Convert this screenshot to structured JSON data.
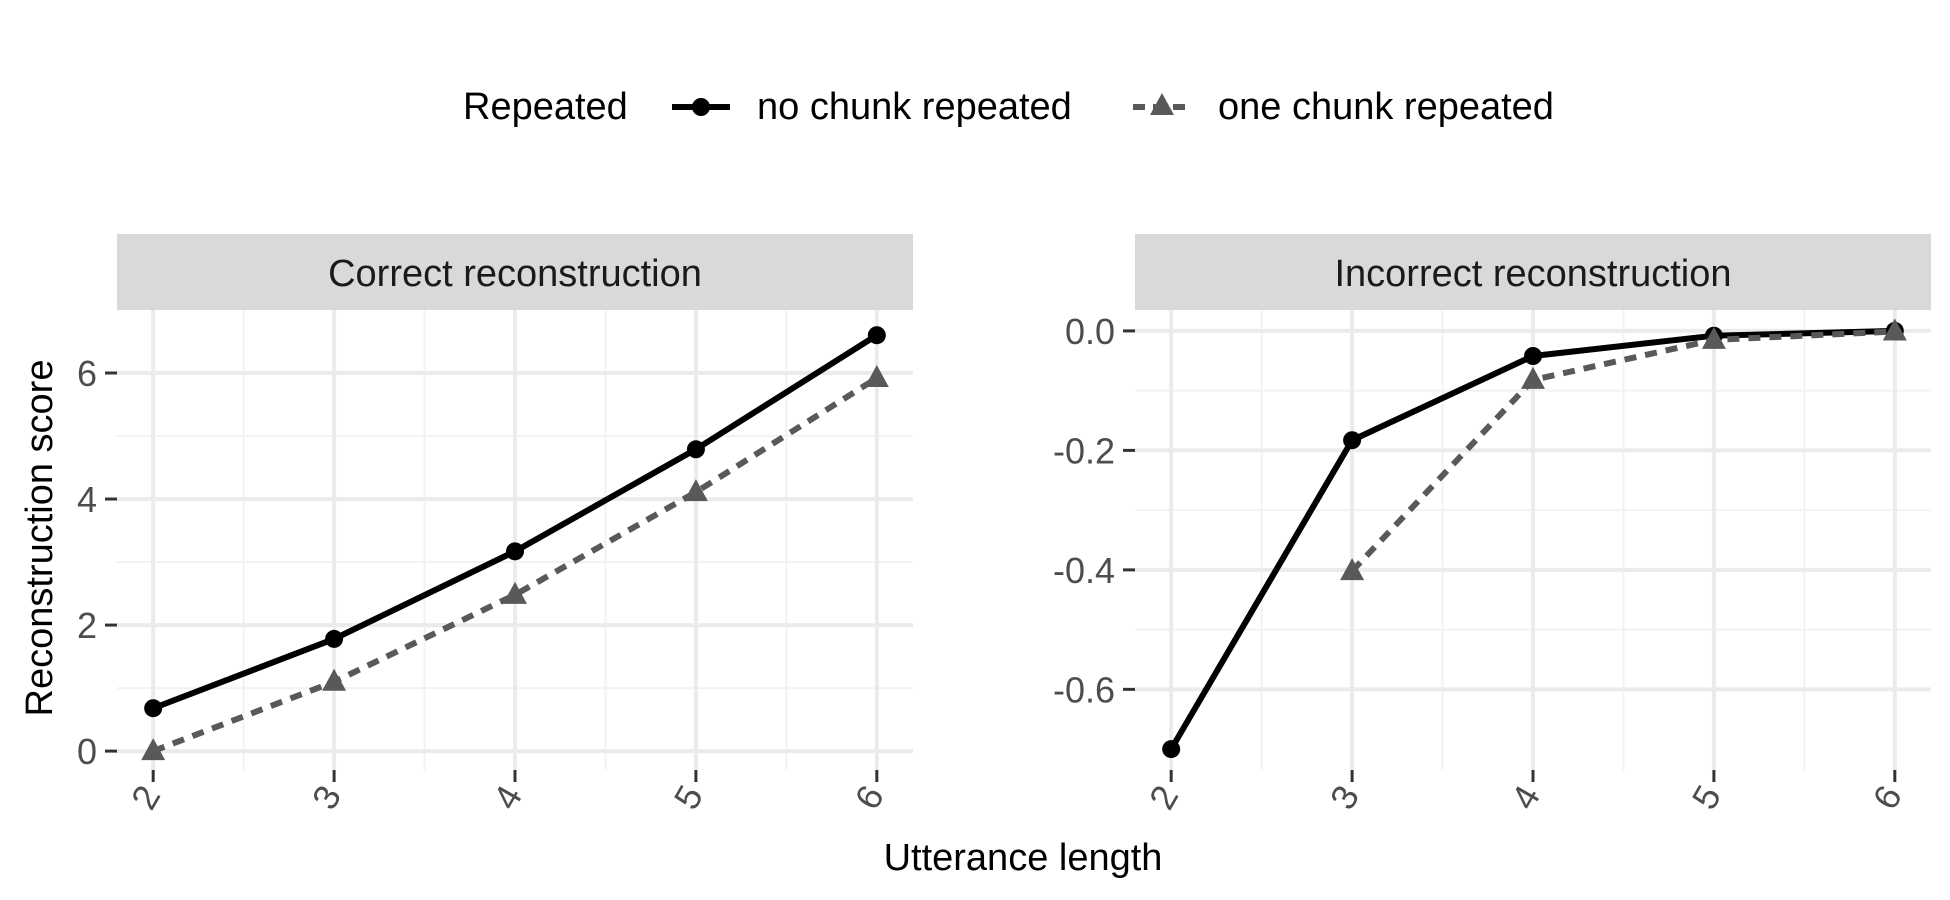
{
  "legend": {
    "title": "Repeated",
    "items": [
      {
        "label": "no chunk repeated"
      },
      {
        "label": "one chunk repeated"
      }
    ]
  },
  "xlabel": "Utterance length",
  "ylabel": "Reconstruction score",
  "chart_data": [
    {
      "type": "line",
      "title": "Correct reconstruction",
      "x": [
        2,
        3,
        4,
        5,
        6
      ],
      "series": [
        {
          "name": "no chunk repeated",
          "values": [
            0.68,
            1.78,
            3.17,
            4.79,
            6.6
          ],
          "color": "#000000",
          "line": "solid",
          "marker": "circle"
        },
        {
          "name": "one chunk repeated",
          "values": [
            0.0,
            1.1,
            2.48,
            4.11,
            5.92
          ],
          "color": "#595959",
          "line": "dashed",
          "marker": "triangle"
        }
      ],
      "yticks": [
        0,
        2,
        4,
        6
      ],
      "ytick_labels": [
        "0",
        "2",
        "4",
        "6"
      ],
      "xticks": [
        "2",
        "3",
        "4",
        "5",
        "6"
      ],
      "ylim": [
        -0.3,
        7.0
      ],
      "grid": true,
      "legend_position": "top"
    },
    {
      "type": "line",
      "title": "Incorrect reconstruction",
      "x": [
        2,
        3,
        4,
        5,
        6
      ],
      "series": [
        {
          "name": "no chunk repeated",
          "values": [
            -0.7,
            -0.183,
            -0.042,
            -0.008,
            0.0
          ],
          "color": "#000000",
          "line": "solid",
          "marker": "circle"
        },
        {
          "name": "one chunk repeated",
          "values": [
            null,
            -0.402,
            -0.082,
            -0.015,
            -0.001
          ],
          "color": "#595959",
          "line": "dashed",
          "marker": "triangle"
        }
      ],
      "yticks": [
        0.0,
        -0.2,
        -0.4,
        -0.6
      ],
      "ytick_labels": [
        "0.0",
        "-0.2",
        "-0.4",
        "-0.6"
      ],
      "xticks": [
        "2",
        "3",
        "4",
        "5",
        "6"
      ],
      "ylim": [
        -0.735,
        0.035
      ],
      "grid": true,
      "legend_position": "top"
    }
  ]
}
